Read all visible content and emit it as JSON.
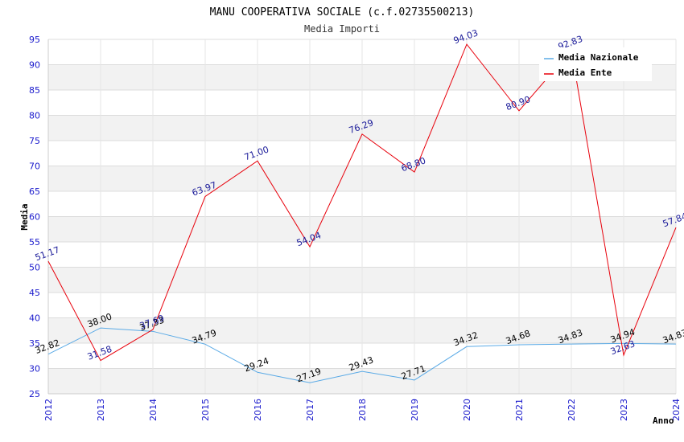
{
  "chart_data": {
    "type": "line",
    "title": "MANU COOPERATIVA SOCIALE (c.f.02735500213)",
    "subtitle": "Media Importi",
    "xlabel": "Anno",
    "ylabel": "Media",
    "ylim": [
      25,
      95
    ],
    "yticks": [
      25,
      30,
      35,
      40,
      45,
      50,
      55,
      60,
      65,
      70,
      75,
      80,
      85,
      90,
      95
    ],
    "categories": [
      "2012",
      "2013",
      "2014",
      "2015",
      "2016",
      "2017",
      "2018",
      "2019",
      "2020",
      "2021",
      "2022",
      "2023",
      "2024"
    ],
    "series": [
      {
        "name": "Media Nazionale",
        "color": "#5aaae6",
        "values": [
          32.82,
          38.0,
          37.33,
          34.79,
          29.24,
          27.19,
          29.43,
          27.71,
          34.32,
          34.68,
          34.83,
          34.94,
          34.83
        ],
        "labels": [
          "32.82",
          "38.00",
          "37.33",
          "34.79",
          "29.24",
          "27.19",
          "29.43",
          "27.71",
          "34.32",
          "34.68",
          "34.83",
          "34.94",
          "34.83"
        ]
      },
      {
        "name": "Media Ente",
        "color": "#e8000b",
        "values": [
          51.17,
          31.58,
          37.69,
          63.97,
          71.0,
          54.04,
          76.29,
          68.8,
          94.03,
          80.9,
          92.83,
          32.63,
          57.84
        ],
        "labels": [
          "51.17",
          "31.58",
          "37.69",
          "63.97",
          "71.00",
          "54.04",
          "76.29",
          "68.80",
          "94.03",
          "80.90",
          "92.83",
          "32.63",
          "57.84"
        ]
      }
    ],
    "grid": true,
    "legend": "top-right"
  }
}
